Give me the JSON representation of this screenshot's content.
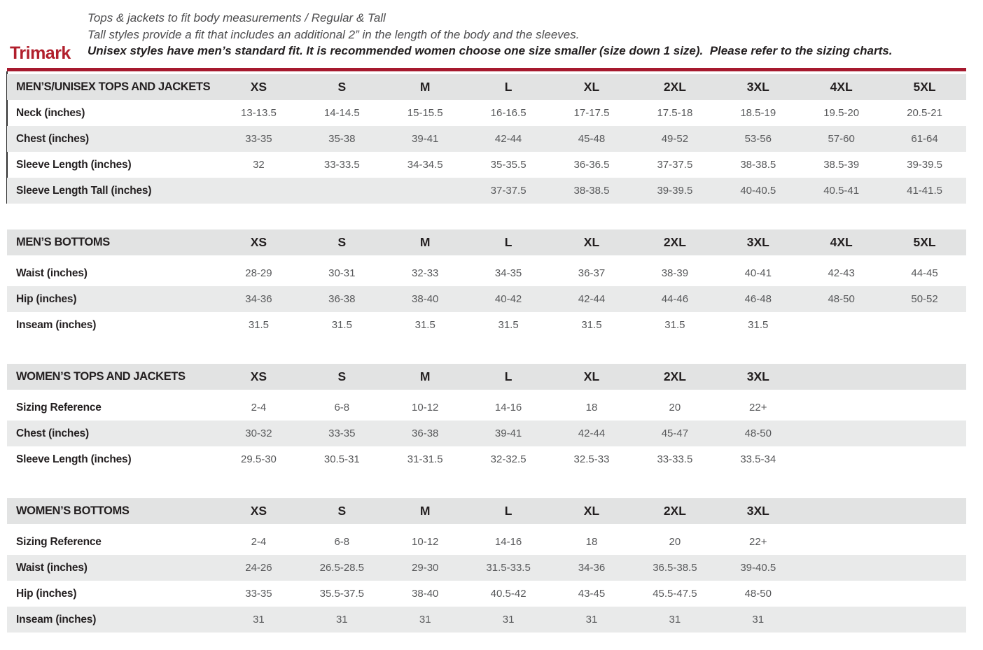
{
  "brand": {
    "name": "Trimark",
    "color": "#b11f2c"
  },
  "notes": {
    "line1": "Tops & jackets to fit body measurements / Regular & Tall",
    "line2": "Tall styles provide a fit that includes an additional 2” in the length of the body and the sleeves.",
    "line3": "Unisex styles have men’s standard fit. It is recommended women choose one size smaller (size down 1 size).  Please refer to the sizing charts."
  },
  "rule_color": "#a6192e",
  "tables": [
    {
      "title": "MEN’S/UNISEX TOPS AND JACKETS",
      "sizes": [
        "XS",
        "S",
        "M",
        "L",
        "XL",
        "2XL",
        "3XL",
        "4XL",
        "5XL"
      ],
      "rows": [
        {
          "label": "Neck (inches)",
          "values": [
            "13-13.5",
            "14-14.5",
            "15-15.5",
            "16-16.5",
            "17-17.5",
            "17.5-18",
            "18.5-19",
            "19.5-20",
            "20.5-21"
          ]
        },
        {
          "label": "Chest (inches)",
          "values": [
            "33-35",
            "35-38",
            "39-41",
            "42-44",
            "45-48",
            "49-52",
            "53-56",
            "57-60",
            "61-64"
          ]
        },
        {
          "label": "Sleeve Length (inches)",
          "values": [
            "32",
            "33-33.5",
            "34-34.5",
            "35-35.5",
            "36-36.5",
            "37-37.5",
            "38-38.5",
            "38.5-39",
            "39-39.5"
          ]
        },
        {
          "label": "Sleeve Length Tall (inches)",
          "values": [
            "",
            "",
            "",
            "37-37.5",
            "38-38.5",
            "39-39.5",
            "40-40.5",
            "40.5-41",
            "41-41.5"
          ]
        }
      ]
    },
    {
      "title": "MEN’S BOTTOMS",
      "sizes": [
        "XS",
        "S",
        "M",
        "L",
        "XL",
        "2XL",
        "3XL",
        "4XL",
        "5XL"
      ],
      "rows": [
        {
          "label": "Waist (inches)",
          "values": [
            "28-29",
            "30-31",
            "32-33",
            "34-35",
            "36-37",
            "38-39",
            "40-41",
            "42-43",
            "44-45"
          ]
        },
        {
          "label": "Hip (inches)",
          "values": [
            "34-36",
            "36-38",
            "38-40",
            "40-42",
            "42-44",
            "44-46",
            "46-48",
            "48-50",
            "50-52"
          ]
        },
        {
          "label": "Inseam (inches)",
          "values": [
            "31.5",
            "31.5",
            "31.5",
            "31.5",
            "31.5",
            "31.5",
            "31.5",
            "",
            ""
          ]
        }
      ]
    },
    {
      "title": "WOMEN’S TOPS AND JACKETS",
      "sizes": [
        "XS",
        "S",
        "M",
        "L",
        "XL",
        "2XL",
        "3XL"
      ],
      "rows": [
        {
          "label": "Sizing Reference",
          "values": [
            "2-4",
            "6-8",
            "10-12",
            "14-16",
            "18",
            "20",
            "22+"
          ]
        },
        {
          "label": "Chest (inches)",
          "values": [
            "30-32",
            "33-35",
            "36-38",
            "39-41",
            "42-44",
            "45-47",
            "48-50"
          ]
        },
        {
          "label": "Sleeve Length (inches)",
          "values": [
            "29.5-30",
            "30.5-31",
            "31-31.5",
            "32-32.5",
            "32.5-33",
            "33-33.5",
            "33.5-34"
          ]
        }
      ]
    },
    {
      "title": "WOMEN’S BOTTOMS",
      "sizes": [
        "XS",
        "S",
        "M",
        "L",
        "XL",
        "2XL",
        "3XL"
      ],
      "rows": [
        {
          "label": "Sizing Reference",
          "values": [
            "2-4",
            "6-8",
            "10-12",
            "14-16",
            "18",
            "20",
            "22+"
          ]
        },
        {
          "label": "Waist (inches)",
          "values": [
            "24-26",
            "26.5-28.5",
            "29-30",
            "31.5-33.5",
            "34-36",
            "36.5-38.5",
            "39-40.5"
          ]
        },
        {
          "label": "Hip (inches)",
          "values": [
            "33-35",
            "35.5-37.5",
            "38-40",
            "40.5-42",
            "43-45",
            "45.5-47.5",
            "48-50"
          ]
        },
        {
          "label": "Inseam (inches)",
          "values": [
            "31",
            "31",
            "31",
            "31",
            "31",
            "31",
            "31"
          ]
        }
      ]
    }
  ]
}
